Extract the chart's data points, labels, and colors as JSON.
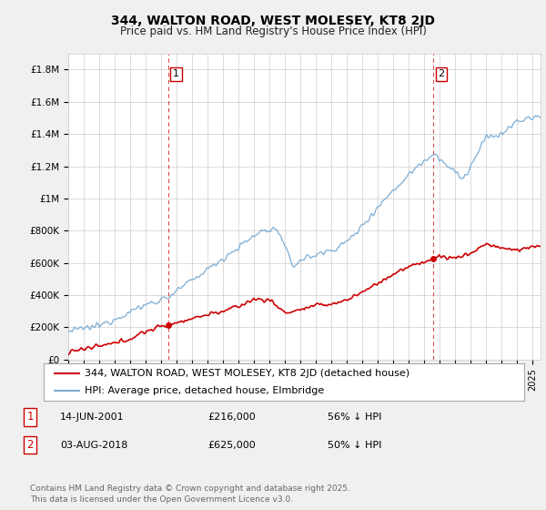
{
  "title": "344, WALTON ROAD, WEST MOLESEY, KT8 2JD",
  "subtitle": "Price paid vs. HM Land Registry's House Price Index (HPI)",
  "ylabel_ticks": [
    "£0",
    "£200K",
    "£400K",
    "£600K",
    "£800K",
    "£1M",
    "£1.2M",
    "£1.4M",
    "£1.6M",
    "£1.8M"
  ],
  "ytick_values": [
    0,
    200000,
    400000,
    600000,
    800000,
    1000000,
    1200000,
    1400000,
    1600000,
    1800000
  ],
  "ylim": [
    0,
    1900000
  ],
  "xlim_start": 1995.0,
  "xlim_end": 2025.5,
  "marker1_x": 2001.45,
  "marker1_y": 216000,
  "marker2_x": 2018.58,
  "marker2_y": 625000,
  "vline1_x": 2001.45,
  "vline2_x": 2018.58,
  "legend_line1": "344, WALTON ROAD, WEST MOLESEY, KT8 2JD (detached house)",
  "legend_line2": "HPI: Average price, detached house, Elmbridge",
  "annotation1_box": "1",
  "annotation1_date": "14-JUN-2001",
  "annotation1_price": "£216,000",
  "annotation1_hpi": "56% ↓ HPI",
  "annotation2_box": "2",
  "annotation2_date": "03-AUG-2018",
  "annotation2_price": "£625,000",
  "annotation2_hpi": "50% ↓ HPI",
  "footer": "Contains HM Land Registry data © Crown copyright and database right 2025.\nThis data is licensed under the Open Government Licence v3.0.",
  "red_color": "#cc0000",
  "blue_color": "#7aacd4",
  "background_color": "#f0f0f0",
  "plot_bg_color": "#ffffff",
  "grid_color": "#cccccc",
  "title_fontsize": 10,
  "subtitle_fontsize": 8.5,
  "tick_fontsize": 7.5,
  "legend_fontsize": 8,
  "annotation_fontsize": 8,
  "footer_fontsize": 6.5
}
